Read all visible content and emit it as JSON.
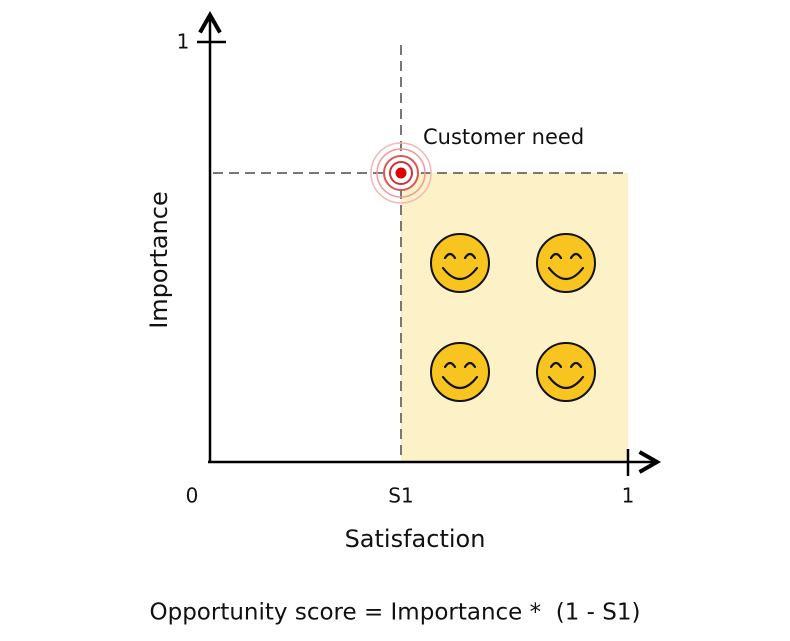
{
  "axes": {
    "y_label": "Importance",
    "x_label": "Satisfaction",
    "y_max": "1",
    "origin": "0",
    "x_mark": "S1",
    "x_max": "1"
  },
  "point_label": "Customer need",
  "formula": "Opportunity score = Importance *  (1 - S1)"
}
